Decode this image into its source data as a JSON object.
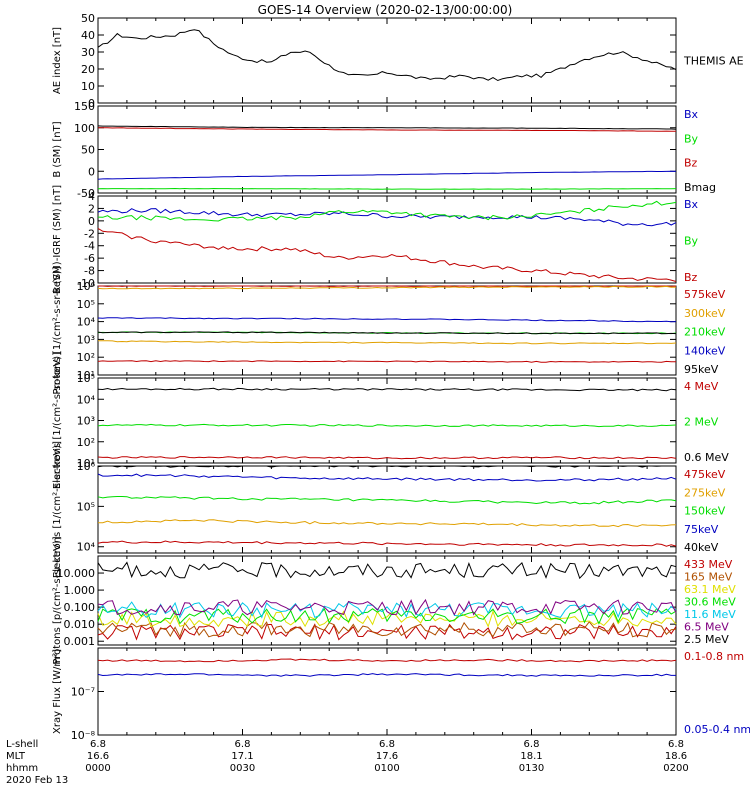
{
  "title": "GOES-14 Overview (2020-02-13/00:00:00)",
  "x_axis": {
    "rows": [
      {
        "label": "L-shell",
        "values": [
          "6.8",
          "6.8",
          "6.8",
          "6.8",
          "6.8"
        ]
      },
      {
        "label": "MLT",
        "values": [
          "16.6",
          "17.1",
          "17.6",
          "18.1",
          "18.6"
        ]
      },
      {
        "label": "hhmm",
        "values": [
          "0000",
          "0030",
          "0100",
          "0130",
          "0200"
        ]
      }
    ],
    "date": "2020 Feb 13"
  },
  "colors": {
    "black": "#000000",
    "red": "#c00000",
    "green": "#00dd00",
    "blue": "#0000c0",
    "orange": "#e0a000",
    "lime": "#00e000",
    "cyan": "#00c8e8",
    "purple": "#800080",
    "darkred": "#800000",
    "brown": "#b05000",
    "yellow": "#e0e000"
  },
  "chart_data": [
    {
      "type": "line",
      "ylabel": "AE index [nT]",
      "ylim": [
        0,
        50
      ],
      "yticks": [
        "0",
        "10",
        "20",
        "30",
        "40",
        "50"
      ],
      "series": [
        {
          "name": "THEMIS AE",
          "color": "#000000",
          "x": [
            0,
            4,
            8,
            12,
            16,
            20,
            24,
            28,
            32,
            36,
            40,
            44,
            48,
            52,
            56,
            60,
            64,
            68,
            72,
            76,
            80,
            84,
            88,
            92,
            96,
            100,
            104,
            108,
            112,
            116,
            120
          ],
          "values": [
            32,
            40,
            38,
            39,
            40,
            44,
            35,
            28,
            25,
            24,
            30,
            30,
            22,
            16,
            16,
            18,
            16,
            14,
            15,
            16,
            14,
            14,
            16,
            16,
            20,
            25,
            28,
            30,
            27,
            23,
            20
          ]
        }
      ]
    },
    {
      "type": "line",
      "ylabel": "B (SM) [nT]",
      "ylim": [
        -50,
        150
      ],
      "yticks": [
        "-50",
        "0",
        "50",
        "100",
        "150"
      ],
      "series": [
        {
          "name": "Bx",
          "color": "#0000c0",
          "x": [
            0,
            30,
            60,
            90,
            120
          ],
          "values": [
            -18,
            -12,
            -8,
            -3,
            0
          ]
        },
        {
          "name": "By",
          "color": "#00dd00",
          "x": [
            0,
            30,
            60,
            90,
            120
          ],
          "values": [
            -40,
            -40,
            -41,
            -41,
            -40
          ]
        },
        {
          "name": "Bz",
          "color": "#c00000",
          "x": [
            0,
            30,
            60,
            90,
            120
          ],
          "values": [
            100,
            97,
            95,
            94,
            92
          ]
        },
        {
          "name": "Bmag",
          "color": "#000000",
          "x": [
            0,
            30,
            60,
            90,
            120
          ],
          "values": [
            104,
            101,
            100,
            99,
            97
          ]
        }
      ]
    },
    {
      "type": "line",
      "ylabel": "B (SM)-IGRF (SM) [nT]",
      "ylim": [
        -10,
        4
      ],
      "yticks": [
        "-10",
        "-8",
        "-6",
        "-4",
        "-2",
        "0",
        "2",
        "4"
      ],
      "series": [
        {
          "name": "Bx",
          "color": "#0000c0",
          "x": [
            0,
            10,
            20,
            30,
            40,
            50,
            60,
            70,
            80,
            90,
            100,
            110,
            120
          ],
          "values": [
            1.5,
            1.7,
            1.4,
            1.0,
            1.0,
            1.2,
            0.8,
            0.6,
            0.7,
            0.6,
            0.3,
            -0.5,
            -0.5
          ]
        },
        {
          "name": "By",
          "color": "#00dd00",
          "x": [
            0,
            10,
            20,
            30,
            40,
            50,
            60,
            70,
            80,
            90,
            100,
            110,
            120
          ],
          "values": [
            0.5,
            0.5,
            0.2,
            0.3,
            0.5,
            1.5,
            1.5,
            0.8,
            0.5,
            0.8,
            1.5,
            2.5,
            3.0
          ]
        },
        {
          "name": "Bz",
          "color": "#c00000",
          "x": [
            0,
            10,
            20,
            30,
            40,
            50,
            60,
            70,
            80,
            90,
            100,
            110,
            120
          ],
          "values": [
            -1.5,
            -3.0,
            -4.0,
            -4.5,
            -4.5,
            -6.0,
            -5.5,
            -6.5,
            -7.5,
            -8.0,
            -8.7,
            -9.3,
            -9.5
          ]
        }
      ]
    },
    {
      "type": "line",
      "log_y": true,
      "ylabel": "Protons [1/(cm²-s-sr-keV)]",
      "ylim": [
        10,
        1000000
      ],
      "yticks": [
        "10¹",
        "10²",
        "10³",
        "10⁴",
        "10⁵",
        "10⁶"
      ],
      "series": [
        {
          "name": "575keV",
          "color": "#c00000",
          "x": [
            0,
            120
          ],
          "values": [
            1000000,
            1000000
          ]
        },
        {
          "name": "300keV",
          "color": "#e0a000",
          "x": [
            0,
            30,
            60,
            90,
            120
          ],
          "values": [
            700000,
            750000,
            800000,
            900000,
            900000
          ]
        },
        {
          "name": "210keV",
          "color": "#00dd00",
          "x": [
            0,
            30,
            60,
            90,
            120
          ],
          "values": [
            2500,
            2500,
            2300,
            2200,
            2200
          ]
        },
        {
          "name": "140keV",
          "color": "#0000c0",
          "x": [
            0,
            30,
            60,
            90,
            120
          ],
          "values": [
            16000,
            15000,
            14000,
            12000,
            10000
          ]
        },
        {
          "name": "95keV",
          "color": "#000000",
          "x": [
            0,
            30,
            60,
            90,
            120
          ],
          "values": [
            2500,
            2500,
            2300,
            2200,
            2200
          ]
        }
      ],
      "extra_series": [
        {
          "color": "#e0a000",
          "x": [
            0,
            30,
            60,
            90,
            120
          ],
          "values": [
            800,
            700,
            650,
            600,
            600
          ]
        },
        {
          "color": "#c00000",
          "x": [
            0,
            30,
            60,
            90,
            120
          ],
          "values": [
            60,
            60,
            58,
            55,
            55
          ]
        }
      ]
    },
    {
      "type": "line",
      "log_y": true,
      "ylabel": "Electrons [1/(cm²-s-sr-keV)]",
      "ylim": [
        10,
        100000
      ],
      "yticks": [
        "10¹",
        "10²",
        "10³",
        "10⁴",
        "10⁵"
      ],
      "series": [
        {
          "name": "4 MeV",
          "color": "#c00000",
          "x": [
            0,
            30,
            60,
            90,
            120
          ],
          "values": [
            18,
            19,
            17,
            18,
            17
          ]
        },
        {
          "name": "2 MeV",
          "color": "#00dd00",
          "x": [
            0,
            30,
            60,
            90,
            120
          ],
          "values": [
            600,
            600,
            580,
            570,
            560
          ]
        },
        {
          "name": "0.6 MeV",
          "color": "#000000",
          "x": [
            0,
            30,
            60,
            90,
            120
          ],
          "values": [
            30000,
            30000,
            29000,
            28000,
            27000
          ]
        }
      ]
    },
    {
      "type": "line",
      "log_y": true,
      "ylabel": "Electrons [1/(cm²-s-sr-keV)]",
      "ylim": [
        7000,
        1000000
      ],
      "yticks": [
        "10⁴",
        "10⁵",
        "10⁶"
      ],
      "series": [
        {
          "name": "475keV",
          "color": "#c00000",
          "x": [
            0,
            20,
            40,
            60,
            80,
            100,
            120
          ],
          "values": [
            13000,
            13000,
            12500,
            12000,
            11500,
            11000,
            11000
          ]
        },
        {
          "name": "275keV",
          "color": "#e0a000",
          "x": [
            0,
            20,
            40,
            60,
            80,
            100,
            120
          ],
          "values": [
            40000,
            45000,
            40000,
            38000,
            36000,
            33000,
            34000
          ]
        },
        {
          "name": "150keV",
          "color": "#00dd00",
          "x": [
            0,
            20,
            40,
            60,
            80,
            100,
            120
          ],
          "values": [
            170000,
            160000,
            150000,
            140000,
            130000,
            120000,
            140000
          ]
        },
        {
          "name": "75keV",
          "color": "#0000c0",
          "x": [
            0,
            20,
            40,
            60,
            80,
            100,
            120
          ],
          "values": [
            600000,
            570000,
            500000,
            480000,
            460000,
            450000,
            500000
          ]
        },
        {
          "name": "40keV",
          "color": "#000000",
          "x": [
            0,
            20,
            40,
            60,
            80,
            100,
            120
          ],
          "values": [
            1000000,
            1000000,
            1000000,
            1000000,
            1000000,
            1000000,
            1000000
          ]
        }
      ]
    },
    {
      "type": "line",
      "log_y": true,
      "ylabel": "Protons [p/(cm²-s-sr-keV)]",
      "ylim": [
        0.0006,
        100
      ],
      "yticks": [
        "0.001",
        "0.010",
        "0.100",
        "1.000",
        "10.000"
      ],
      "series": [
        {
          "name": "433 MeV",
          "color": "#c00000",
          "x": [
            0,
            120
          ],
          "values": [
            0.0035,
            0.0035
          ]
        },
        {
          "name": "165 MeV",
          "color": "#b05000",
          "x": [
            0,
            120
          ],
          "values": [
            0.005,
            0.005
          ]
        },
        {
          "name": "63.1 MeV",
          "color": "#e0e000",
          "x": [
            0,
            120
          ],
          "values": [
            0.02,
            0.02
          ]
        },
        {
          "name": "30.6 MeV",
          "color": "#00e000",
          "x": [
            0,
            120
          ],
          "values": [
            0.03,
            0.03
          ]
        },
        {
          "name": "11.6 MeV",
          "color": "#00c8e8",
          "x": [
            0,
            120
          ],
          "values": [
            0.07,
            0.07
          ]
        },
        {
          "name": "6.5 MeV",
          "color": "#800080",
          "x": [
            0,
            120
          ],
          "values": [
            0.1,
            0.1
          ]
        },
        {
          "name": "2.5 MeV",
          "color": "#000000",
          "x": [
            0,
            30,
            60,
            90,
            120
          ],
          "values": [
            15,
            15,
            14,
            14,
            13
          ]
        }
      ]
    },
    {
      "type": "line",
      "log_y": true,
      "ylabel": "Xray Flux [W/m²]",
      "ylim": [
        1e-09,
        1e-07
      ],
      "yticks": [
        "10⁻⁸",
        "10⁻⁷"
      ],
      "series": [
        {
          "name": "0.1-0.8 nm",
          "color": "#c00000",
          "x": [
            0,
            20,
            40,
            60,
            80,
            100,
            120
          ],
          "values": [
            5.2e-08,
            5e-08,
            5.4e-08,
            5.1e-08,
            5.3e-08,
            5e-08,
            5.2e-08
          ]
        },
        {
          "name": "0.05-0.4 nm",
          "color": "#0000c0",
          "x": [
            0,
            20,
            40,
            60,
            80,
            100,
            120
          ],
          "values": [
            2.4e-08,
            2.5e-08,
            2.3e-08,
            2.5e-08,
            2.4e-08,
            2.3e-08,
            2.4e-08
          ]
        }
      ]
    }
  ]
}
